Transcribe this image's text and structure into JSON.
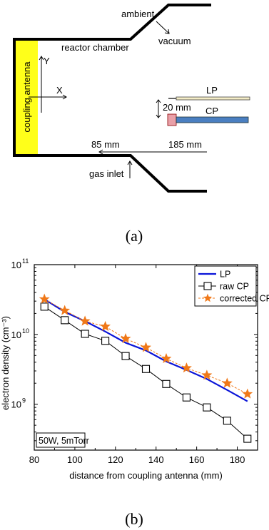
{
  "panel_a": {
    "caption": "(a)",
    "labels": {
      "ambient": "ambient",
      "vacuum": "vacuum",
      "reactor_chamber": "reactor chamber",
      "coupling_antenna": "coupling antenna",
      "y_axis": "Y",
      "x_axis": "X",
      "lp": "LP",
      "cp": "CP",
      "spacing": "20 mm",
      "dist_85": "85 mm",
      "dist_185": "185 mm",
      "gas_inlet": "gas inlet"
    },
    "colors": {
      "antenna": "#ffff1a",
      "lp_probe": "#f3ecc6",
      "cp_probe": "#4a7fc1",
      "cp_head": "#e9a0a8"
    }
  },
  "panel_b": {
    "caption": "(b)"
  },
  "chart_data": {
    "type": "line",
    "xlabel": "distance from coupling antenna (mm)",
    "ylabel": "electron density (cm⁻³)",
    "x_ticks": [
      "80",
      "100",
      "120",
      "140",
      "160",
      "180"
    ],
    "xlim": [
      80,
      190
    ],
    "y_scale": "log",
    "ylim": [
      220000000.0,
      100000000000.0
    ],
    "y_ticks": [
      {
        "value": 1000000000.0,
        "base": "10",
        "exp": "9"
      },
      {
        "value": 10000000000.0,
        "base": "10",
        "exp": "10"
      },
      {
        "value": 100000000000.0,
        "base": "10",
        "exp": "11"
      }
    ],
    "annotation": "50W, 5mTorr",
    "legend_position": "top-right",
    "series": [
      {
        "name": "LP",
        "color": "#0a14d8",
        "marker": "none",
        "x": [
          85,
          95,
          105,
          115,
          125,
          135,
          145,
          155,
          165,
          175,
          185
        ],
        "y": [
          32000000000.0,
          21000000000.0,
          15500000000.0,
          11000000000.0,
          7600000000.0,
          5900000000.0,
          4100000000.0,
          3100000000.0,
          2300000000.0,
          1600000000.0,
          1100000000.0
        ]
      },
      {
        "name": "raw CP",
        "color": "#000000",
        "marker": "square",
        "x": [
          85,
          95,
          105,
          115,
          125,
          135,
          145,
          155,
          165,
          175,
          185
        ],
        "y": [
          25000000000.0,
          16000000000.0,
          10200000000.0,
          8100000000.0,
          4900000000.0,
          3200000000.0,
          1950000000.0,
          1250000000.0,
          900000000.0,
          580000000.0,
          320000000.0
        ]
      },
      {
        "name": "corrected CP",
        "color": "#f07818",
        "marker": "star",
        "x": [
          85,
          95,
          105,
          115,
          125,
          135,
          145,
          155,
          165,
          175,
          185
        ],
        "y": [
          32000000000.0,
          22000000000.0,
          15500000000.0,
          13000000000.0,
          8700000000.0,
          6500000000.0,
          4500000000.0,
          3300000000.0,
          2600000000.0,
          2000000000.0,
          1400000000.0
        ]
      }
    ]
  }
}
